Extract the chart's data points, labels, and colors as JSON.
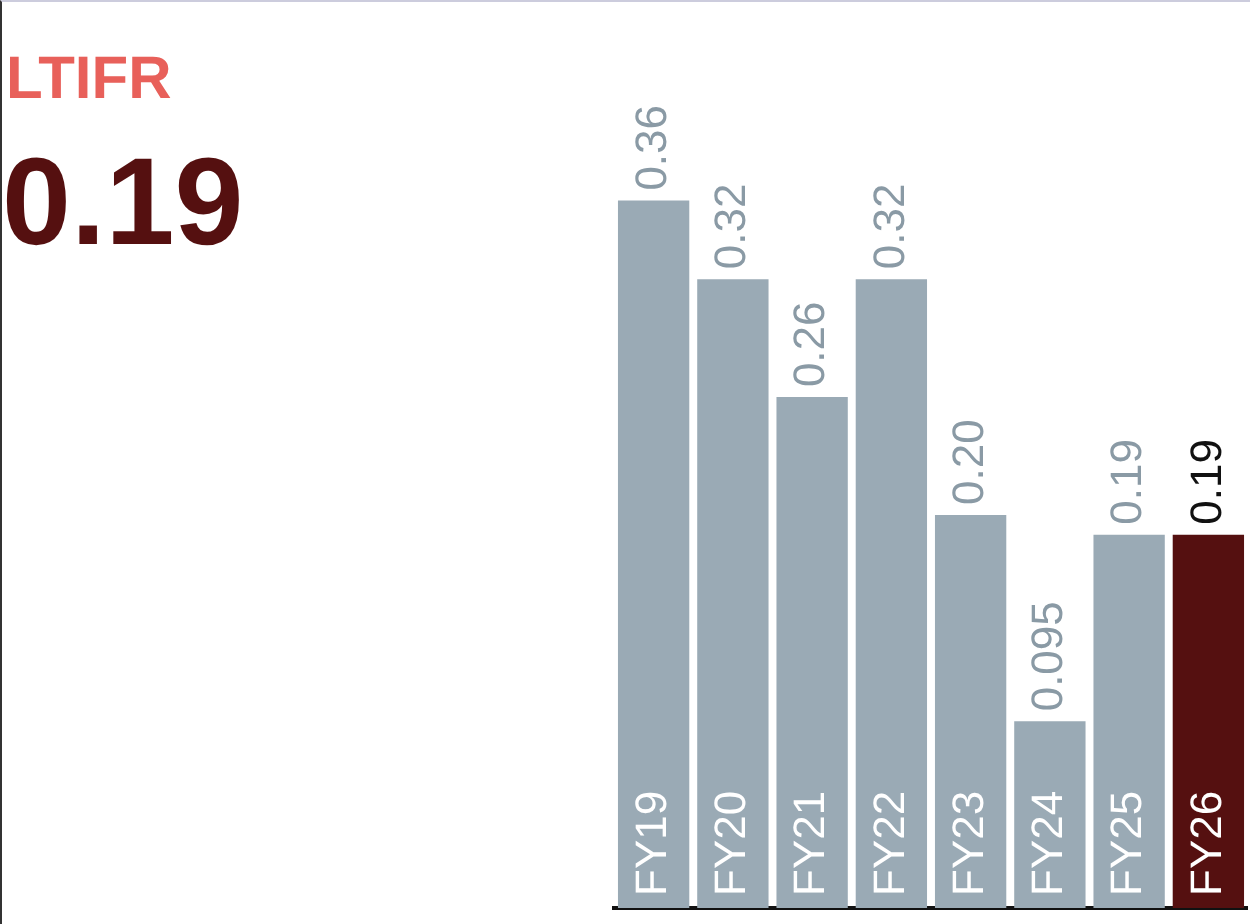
{
  "chart_data": {
    "type": "bar",
    "title": "LTIFR",
    "subtitle": "0.19",
    "categories": [
      "FY19",
      "FY20",
      "FY21",
      "FY22",
      "FY23",
      "FY24",
      "FY25",
      "FY26"
    ],
    "values": [
      0.36,
      0.32,
      0.26,
      0.32,
      0.2,
      0.095,
      0.19,
      0.19
    ],
    "colors": [
      "#9aaab5",
      "#9aaab5",
      "#9aaab5",
      "#9aaab5",
      "#9aaab5",
      "#9aaab5",
      "#9aaab5",
      "#551010"
    ],
    "value_labels": [
      "0.36",
      "0.32",
      "0.26",
      "0.32",
      "0.20",
      "0.095",
      "0.19",
      "0.19"
    ],
    "grid": false,
    "legend": false
  }
}
